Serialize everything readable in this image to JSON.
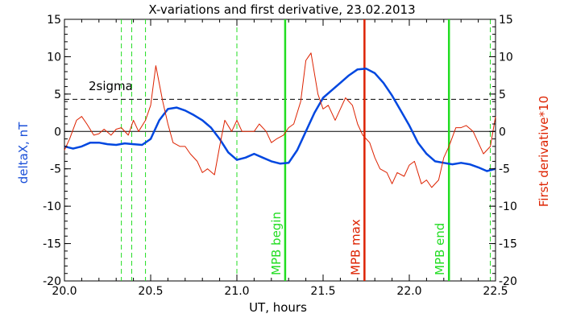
{
  "chart_data": {
    "type": "line",
    "title": "X-variations and first derivative, 23.02.2013",
    "xlabel": "UT, hours",
    "ylabel_left": "deltaX, nT",
    "ylabel_right": "First derivative*10",
    "xlim": [
      20.0,
      22.5
    ],
    "ylim_left": [
      -20,
      15
    ],
    "ylim_right": [
      -20,
      15
    ],
    "x_ticks": [
      "20.0",
      "20.5",
      "21.0",
      "21.5",
      "22.0",
      "22.5"
    ],
    "y_ticks_left": [
      "-20",
      "-15",
      "-10",
      "-5",
      "0",
      "5",
      "10",
      "15"
    ],
    "y_ticks_right": [
      "-20",
      "-15",
      "-10",
      "-5",
      "0",
      "5",
      "10",
      "15"
    ],
    "colors": {
      "deltaX": "#0047e0",
      "derivative": "#dd2200",
      "mpb_line": "#22dd22",
      "mpb_max": "#dd2200"
    },
    "threshold": {
      "label": "2sigma",
      "value": 4.3
    },
    "zero_line": 0,
    "dashed_verticals": [
      20.33,
      20.39,
      20.47,
      21.0,
      22.47
    ],
    "markers": [
      {
        "label": "MPB begin",
        "x": 21.28
      },
      {
        "label": "MPB max",
        "x": 21.74
      },
      {
        "label": "MPB end",
        "x": 22.23
      }
    ],
    "series": [
      {
        "name": "deltaX, nT",
        "axis": "left",
        "x": [
          20.0,
          20.05,
          20.1,
          20.15,
          20.2,
          20.25,
          20.3,
          20.35,
          20.4,
          20.45,
          20.5,
          20.55,
          20.6,
          20.65,
          20.7,
          20.75,
          20.8,
          20.85,
          20.9,
          20.95,
          21.0,
          21.05,
          21.1,
          21.15,
          21.2,
          21.25,
          21.3,
          21.35,
          21.4,
          21.45,
          21.5,
          21.55,
          21.6,
          21.65,
          21.7,
          21.75,
          21.8,
          21.85,
          21.9,
          21.95,
          22.0,
          22.05,
          22.1,
          22.15,
          22.2,
          22.25,
          22.3,
          22.35,
          22.4,
          22.45,
          22.5
        ],
        "y": [
          -2.0,
          -2.3,
          -2.0,
          -1.5,
          -1.5,
          -1.7,
          -1.8,
          -1.6,
          -1.7,
          -1.8,
          -1.0,
          1.5,
          3.0,
          3.2,
          2.8,
          2.2,
          1.5,
          0.5,
          -1.0,
          -2.8,
          -3.8,
          -3.5,
          -3.0,
          -3.5,
          -4.0,
          -4.3,
          -4.2,
          -2.5,
          0.0,
          2.5,
          4.5,
          5.5,
          6.5,
          7.5,
          8.3,
          8.4,
          7.8,
          6.5,
          4.8,
          2.8,
          0.8,
          -1.5,
          -3.0,
          -4.0,
          -4.2,
          -4.4,
          -4.2,
          -4.4,
          -4.8,
          -5.3,
          -5.0
        ]
      },
      {
        "name": "First derivative*10",
        "axis": "right",
        "x": [
          20.0,
          20.03,
          20.07,
          20.1,
          20.13,
          20.17,
          20.2,
          20.23,
          20.27,
          20.3,
          20.33,
          20.37,
          20.4,
          20.43,
          20.47,
          20.5,
          20.53,
          20.57,
          20.6,
          20.63,
          20.67,
          20.7,
          20.73,
          20.77,
          20.8,
          20.83,
          20.87,
          20.9,
          20.93,
          20.97,
          21.0,
          21.03,
          21.07,
          21.1,
          21.13,
          21.17,
          21.2,
          21.23,
          21.27,
          21.3,
          21.33,
          21.37,
          21.4,
          21.43,
          21.47,
          21.5,
          21.53,
          21.57,
          21.6,
          21.63,
          21.67,
          21.7,
          21.73,
          21.77,
          21.8,
          21.83,
          21.87,
          21.9,
          21.93,
          21.97,
          22.0,
          22.03,
          22.07,
          22.1,
          22.13,
          22.17,
          22.2,
          22.23,
          22.27,
          22.3,
          22.33,
          22.37,
          22.4,
          22.43,
          22.47,
          22.5
        ],
        "y": [
          -2.5,
          -1.0,
          1.5,
          2.0,
          1.0,
          -0.5,
          -0.3,
          0.3,
          -0.5,
          0.3,
          0.5,
          -0.5,
          1.5,
          0.0,
          1.5,
          3.5,
          8.8,
          4.0,
          1.0,
          -1.5,
          -2.0,
          -2.0,
          -3.0,
          -4.0,
          -5.5,
          -5.0,
          -5.8,
          -2.0,
          1.5,
          0.0,
          1.5,
          0.0,
          0.0,
          0.0,
          1.0,
          0.0,
          -1.5,
          -1.0,
          -0.5,
          0.5,
          1.0,
          4.0,
          9.5,
          10.5,
          5.0,
          3.0,
          3.5,
          1.5,
          3.0,
          4.5,
          3.5,
          1.0,
          -0.5,
          -1.5,
          -3.5,
          -5.0,
          -5.5,
          -7.0,
          -5.5,
          -6.0,
          -4.5,
          -4.0,
          -7.0,
          -6.5,
          -7.5,
          -6.5,
          -3.5,
          -2.0,
          0.5,
          0.5,
          0.8,
          0.0,
          -1.5,
          -3.0,
          -2.0,
          2.0
        ]
      }
    ]
  }
}
